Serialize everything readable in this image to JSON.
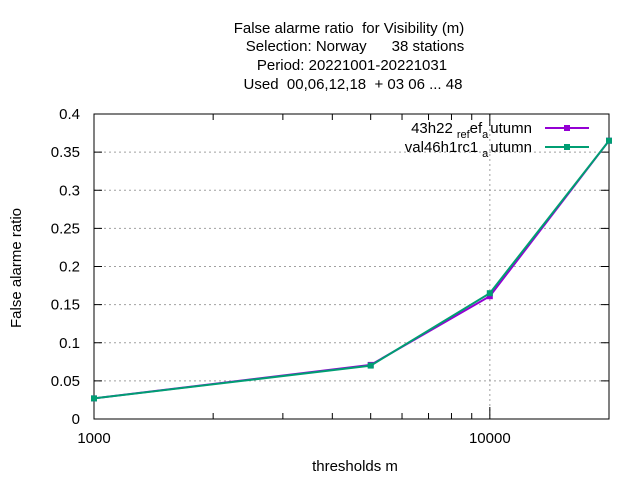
{
  "chart_data": {
    "type": "line",
    "title_lines": [
      "False alarme ratio  for Visibility (m)",
      "Selection: Norway      38 stations",
      "Period: 20221001-20221031",
      "Used  00,06,12,18  + 03 06 ... 48"
    ],
    "xlabel": "thresholds m",
    "ylabel": "False alarme ratio",
    "x_scale": "log",
    "xlim": [
      1000,
      20000
    ],
    "ylim": [
      0,
      0.4
    ],
    "x_ticks": [
      1000,
      10000
    ],
    "x_tick_labels": [
      "1000",
      "10000"
    ],
    "y_ticks": [
      0,
      0.05,
      0.1,
      0.15,
      0.2,
      0.25,
      0.3,
      0.35,
      0.4
    ],
    "y_tick_labels": [
      "0",
      "0.05",
      "0.1",
      "0.15",
      "0.2",
      "0.25",
      "0.3",
      "0.35",
      "0.4"
    ],
    "grid": true,
    "legend_position": "top-right",
    "x": [
      1000,
      5000,
      10000,
      20000
    ],
    "series": [
      {
        "name": "43h22_ref_autumn",
        "name_parts": {
          "a": "43h22",
          "b": "ref",
          "c": "a",
          "d": "utumn"
        },
        "color": "#9400d3",
        "values": [
          0.027,
          0.071,
          0.161,
          0.365
        ]
      },
      {
        "name": "val46h1rc1_autumn",
        "name_parts": {
          "a": "val46h1rc1",
          "b": "",
          "c": "a",
          "d": "utumn"
        },
        "color": "#009e73",
        "values": [
          0.027,
          0.07,
          0.165,
          0.365
        ]
      }
    ]
  }
}
